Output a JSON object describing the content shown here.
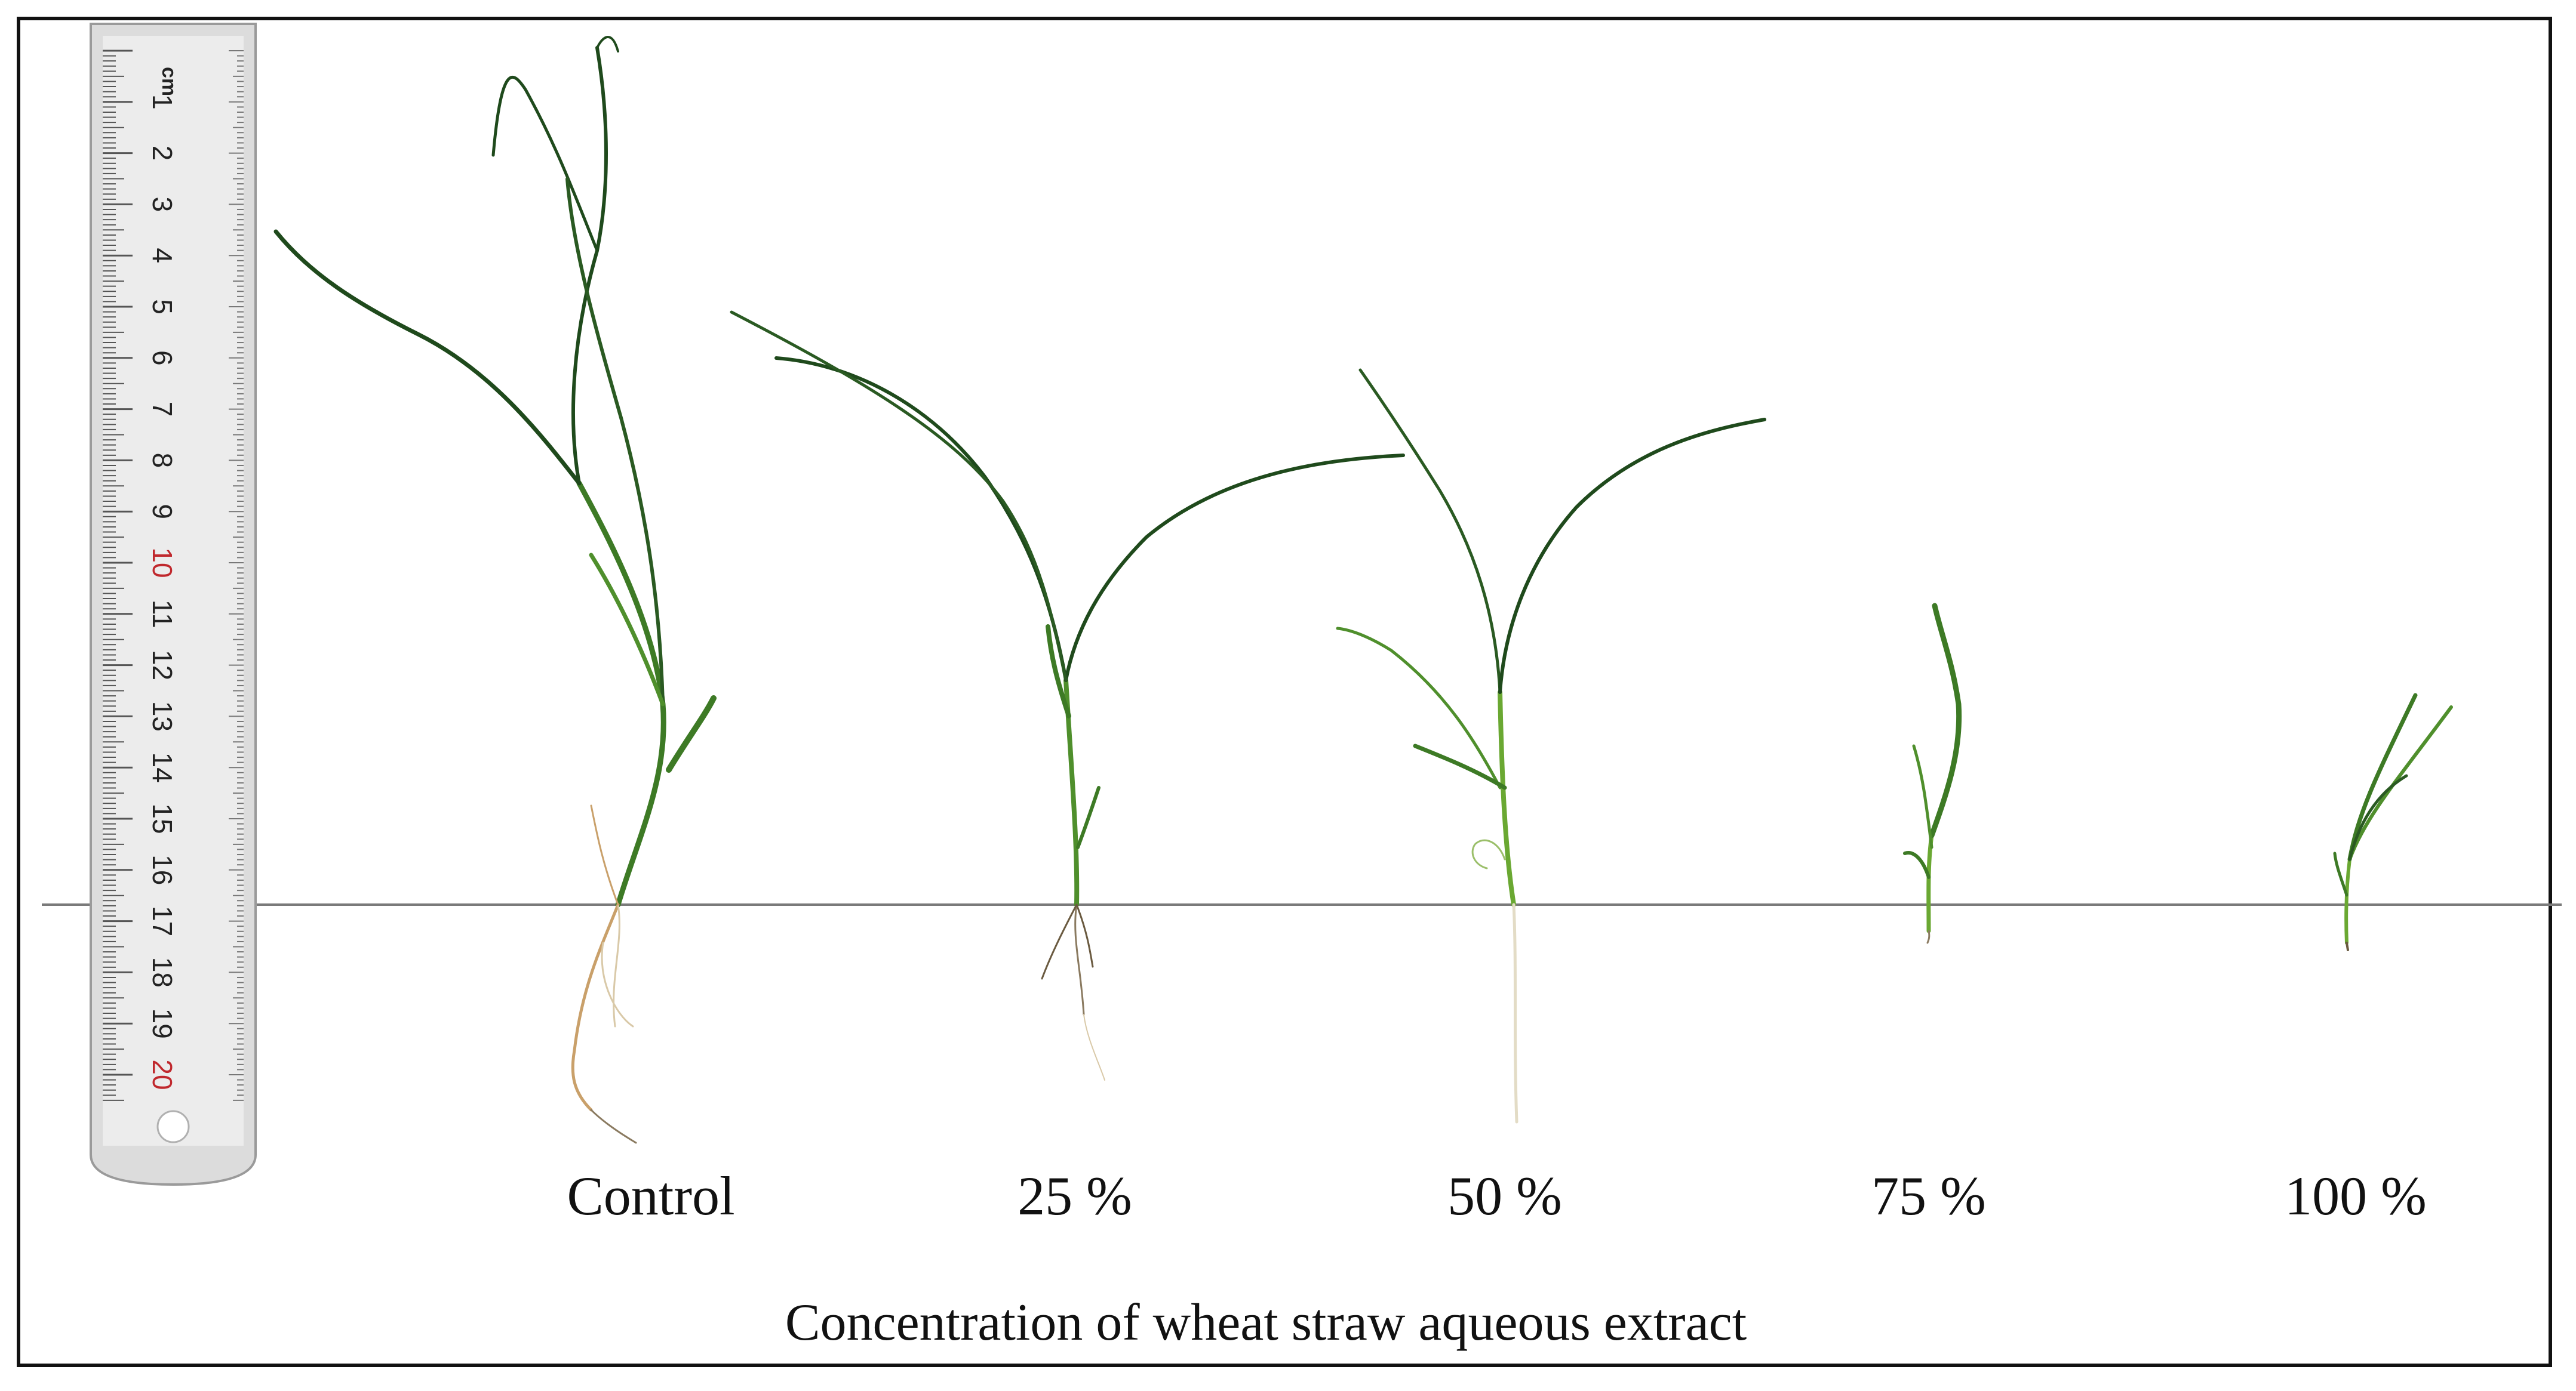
{
  "figure": {
    "title": "Concentration of wheat straw aqueous extract",
    "treatments": [
      "Control",
      "25 %",
      "50 %",
      "75 %",
      "100 %"
    ]
  },
  "ruler": {
    "unit": "cm",
    "numbers": [
      "1",
      "2",
      "3",
      "4",
      "5",
      "6",
      "7",
      "8",
      "9",
      "10",
      "11",
      "12",
      "13",
      "14",
      "15",
      "16",
      "17",
      "18",
      "19",
      "20"
    ],
    "red_numbers": [
      "10",
      "20"
    ]
  },
  "colors": {
    "leaf_dark": "#1f4a1c",
    "leaf_mid": "#3d7a25",
    "leaf_light": "#6aa832",
    "root": "#c9a06a",
    "root_pale": "#d9c9a8",
    "baseline": "#7a7a7a"
  }
}
